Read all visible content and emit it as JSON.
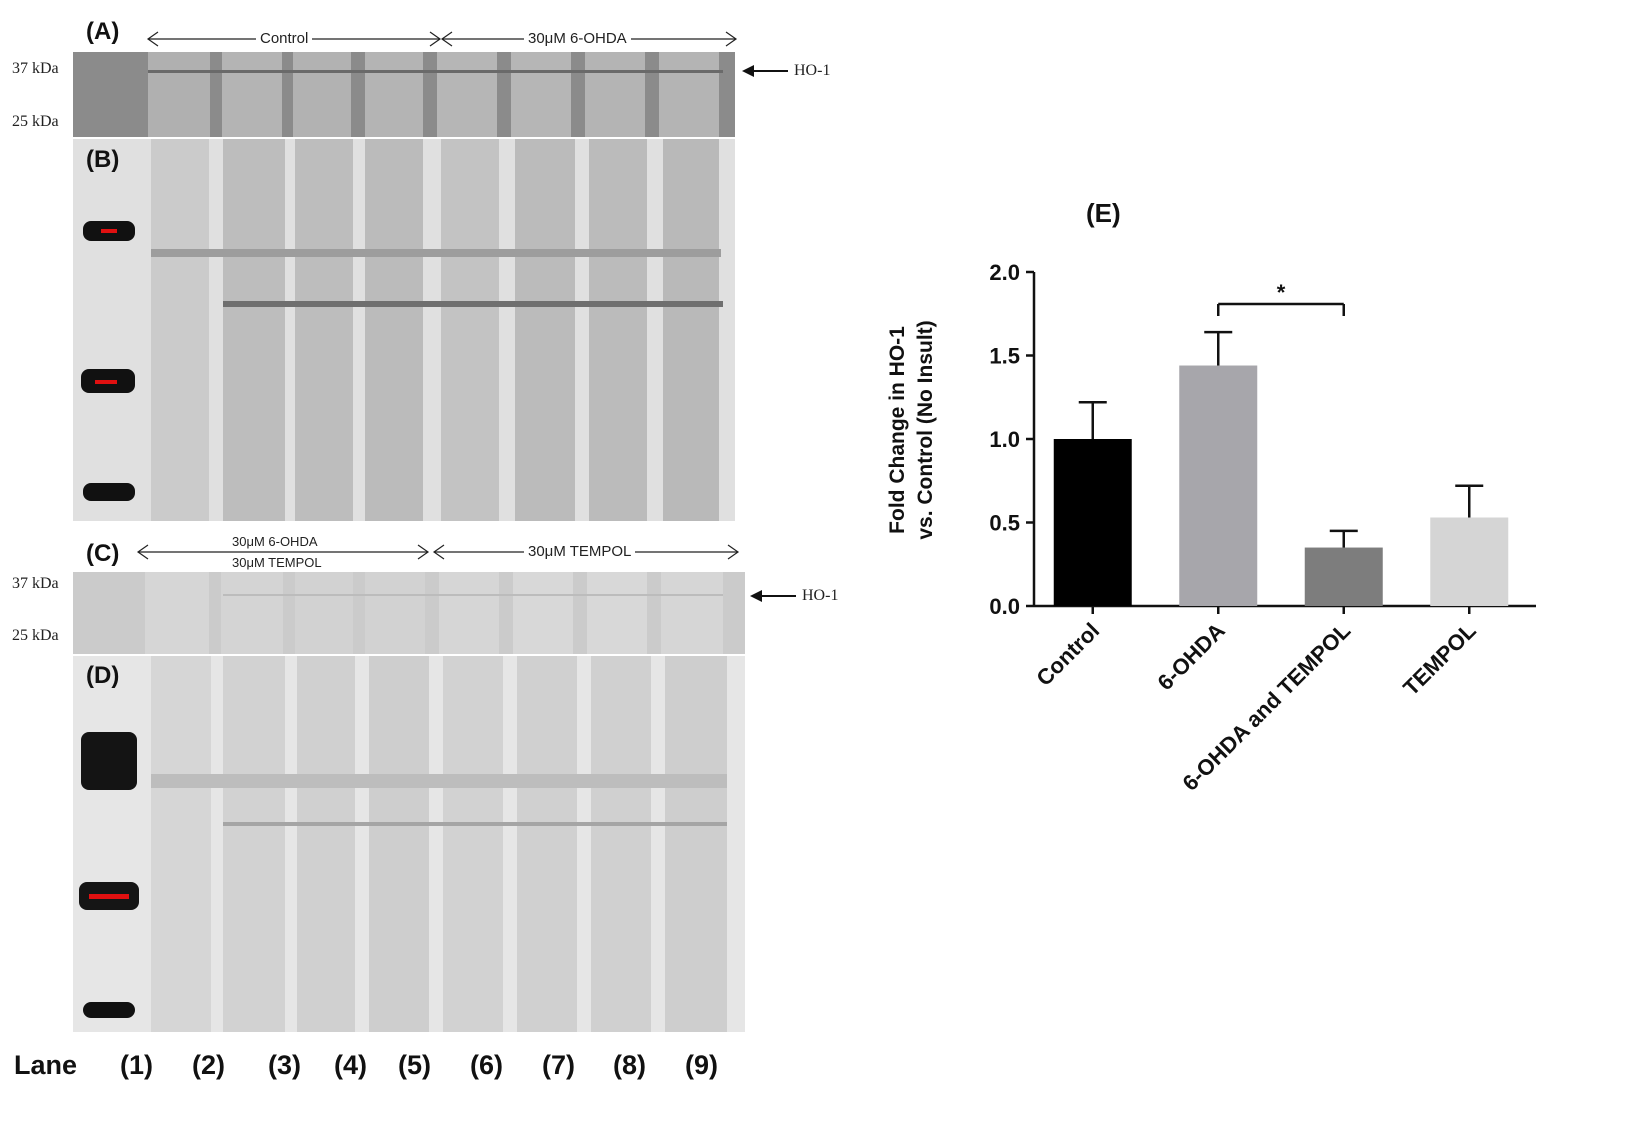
{
  "panels": {
    "a": {
      "label": "(A)",
      "group_left": "Control",
      "group_right": "30μM 6-OHDA",
      "kda_top": "37 kDa",
      "kda_bottom": "25 kDa",
      "band": "HO-1"
    },
    "b": {
      "label": "(B)"
    },
    "c": {
      "label": "(C)",
      "group_left_line1": "30μM 6-OHDA",
      "group_left_line2": "30μM TEMPOL",
      "group_right": "30μM TEMPOL",
      "kda_top": "37 kDa",
      "kda_bottom": "25 kDa",
      "band": "HO-1"
    },
    "d": {
      "label": "(D)"
    },
    "e": {
      "label": "(E)"
    }
  },
  "lanes": {
    "title": "Lane",
    "items": [
      "(1)",
      "(2)",
      "(3)",
      "(4)",
      "(5)",
      "(6)",
      "(7)",
      "(8)",
      "(9)"
    ]
  },
  "chart_data": {
    "type": "bar",
    "title": "",
    "ylabel_line1": "Fold Change in HO-1",
    "ylabel_line2": "vs. Control (No Insult)",
    "xlabel": "",
    "ylim": [
      0,
      2.0
    ],
    "yticks": [
      "0.0",
      "0.5",
      "1.0",
      "1.5",
      "2.0"
    ],
    "categories": [
      "Control",
      "6-OHDA",
      "6-OHDA and TEMPOL",
      "TEMPOL"
    ],
    "values": [
      1.0,
      1.44,
      0.35,
      0.53
    ],
    "errors": [
      0.22,
      0.2,
      0.1,
      0.19
    ],
    "colors": [
      "#000000",
      "#a7a6ab",
      "#7d7d7d",
      "#d5d5d5"
    ],
    "significance": {
      "from": "6-OHDA",
      "to": "6-OHDA and TEMPOL",
      "label": "*"
    }
  }
}
